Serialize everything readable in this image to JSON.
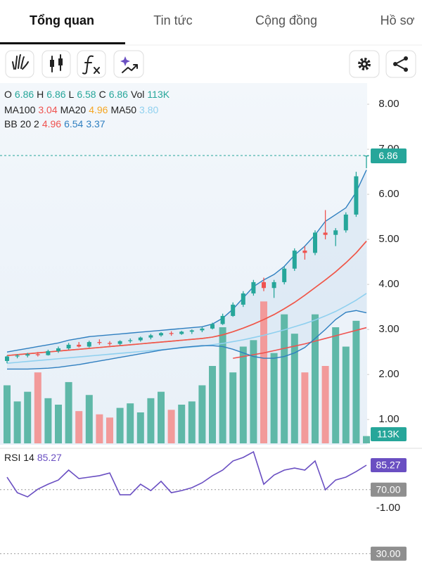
{
  "tabs": [
    "Tổng quan",
    "Tin tức",
    "Cộng đồng",
    "Hồ sơ"
  ],
  "active_tab": 0,
  "chart_data": {
    "type": "candlestick",
    "ylim": [
      0.44,
      8.47
    ],
    "yticks": [
      {
        "value": 1,
        "label": "1.00"
      },
      {
        "value": 2,
        "label": "2.00"
      },
      {
        "value": 3,
        "label": "3.00"
      },
      {
        "value": 4,
        "label": "4.00"
      },
      {
        "value": 5,
        "label": "5.00"
      },
      {
        "value": 6,
        "label": "6.00"
      },
      {
        "value": 7,
        "label": "7.00"
      },
      {
        "value": 8,
        "label": "8.00"
      }
    ],
    "ohlc_labels": [
      "O",
      "H",
      "L",
      "C",
      "Vol"
    ],
    "up_color": "#26a69a",
    "down_color": "#ef5350",
    "open": [
      2.3,
      2.4,
      2.42,
      2.45,
      2.43,
      2.52,
      2.58,
      2.66,
      2.62,
      2.72,
      2.7,
      2.68,
      2.74,
      2.76,
      2.82,
      2.87,
      2.92,
      2.9,
      2.95,
      2.98,
      3.02,
      3.12,
      3.3,
      3.55,
      3.8,
      4.05,
      3.92,
      4.05,
      4.35,
      4.75,
      4.7,
      5.15,
      5.1,
      5.2,
      5.55,
      6.86
    ],
    "high": [
      2.42,
      2.45,
      2.48,
      2.5,
      2.55,
      2.62,
      2.7,
      2.72,
      2.75,
      2.78,
      2.74,
      2.76,
      2.8,
      2.84,
      2.9,
      2.94,
      2.96,
      2.97,
      3.0,
      3.05,
      3.15,
      3.35,
      3.6,
      3.85,
      4.1,
      4.15,
      4.1,
      4.4,
      4.8,
      4.85,
      5.2,
      5.65,
      5.25,
      5.6,
      6.5,
      6.86
    ],
    "low": [
      2.25,
      2.36,
      2.38,
      2.4,
      2.42,
      2.48,
      2.55,
      2.6,
      2.6,
      2.66,
      2.64,
      2.65,
      2.7,
      2.73,
      2.78,
      2.84,
      2.86,
      2.88,
      2.9,
      2.94,
      3.0,
      3.1,
      3.28,
      3.5,
      3.75,
      3.85,
      3.7,
      4.0,
      4.3,
      4.55,
      4.65,
      5.0,
      4.85,
      5.15,
      5.5,
      6.58
    ],
    "close": [
      2.4,
      2.42,
      2.45,
      2.43,
      2.52,
      2.58,
      2.66,
      2.62,
      2.72,
      2.7,
      2.68,
      2.74,
      2.76,
      2.82,
      2.87,
      2.92,
      2.9,
      2.95,
      2.98,
      3.02,
      3.12,
      3.3,
      3.55,
      3.8,
      4.05,
      3.92,
      4.05,
      4.35,
      4.75,
      4.7,
      5.15,
      5.1,
      5.2,
      5.55,
      6.4,
      6.86
    ],
    "volume": [
      900000,
      650000,
      800000,
      1100000,
      700000,
      600000,
      950000,
      500000,
      750000,
      450000,
      400000,
      550000,
      620000,
      480000,
      700000,
      800000,
      520000,
      600000,
      650000,
      900000,
      1200000,
      1800000,
      1100000,
      1500000,
      1600000,
      2200000,
      1400000,
      2000000,
      1700000,
      1100000,
      2000000,
      1200000,
      1800000,
      1500000,
      1900000,
      113000
    ],
    "volume_lim": [
      0,
      2400000
    ],
    "volume_label": "113K",
    "indicators": [
      {
        "name": "MA100",
        "color": "#ef5350",
        "values": [
          null,
          null,
          null,
          null,
          null,
          null,
          null,
          null,
          null,
          null,
          null,
          null,
          null,
          null,
          null,
          null,
          null,
          null,
          null,
          null,
          null,
          null,
          2.36,
          2.4,
          2.44,
          2.48,
          2.53,
          2.58,
          2.63,
          2.68,
          2.74,
          2.8,
          2.86,
          2.92,
          2.98,
          3.04
        ]
      },
      {
        "name": "MA20",
        "color": "#f5a623",
        "values": [
          2.42,
          2.44,
          2.46,
          2.48,
          2.5,
          2.52,
          2.54,
          2.56,
          2.58,
          2.6,
          2.62,
          2.64,
          2.66,
          2.68,
          2.7,
          2.72,
          2.74,
          2.76,
          2.78,
          2.8,
          2.83,
          2.88,
          2.95,
          3.03,
          3.12,
          3.22,
          3.33,
          3.46,
          3.6,
          3.76,
          3.93,
          4.1,
          4.28,
          4.48,
          4.7,
          4.96
        ]
      },
      {
        "name": "MA50",
        "color": "#8fd0ef",
        "values": [
          2.25,
          2.27,
          2.29,
          2.31,
          2.33,
          2.35,
          2.37,
          2.39,
          2.41,
          2.43,
          2.45,
          2.47,
          2.49,
          2.51,
          2.53,
          2.55,
          2.57,
          2.59,
          2.61,
          2.63,
          2.66,
          2.69,
          2.73,
          2.77,
          2.82,
          2.87,
          2.93,
          2.99,
          3.06,
          3.13,
          3.21,
          3.3,
          3.4,
          3.52,
          3.65,
          3.8
        ],
        "value_labels": {
          "35": "3.80"
        }
      }
    ],
    "bb": {
      "name": "BB 20 2",
      "basis_color": "#ef5350",
      "color": "#2f7fc0",
      "upper": [
        2.5,
        2.54,
        2.58,
        2.62,
        2.66,
        2.7,
        2.76,
        2.8,
        2.84,
        2.86,
        2.88,
        2.9,
        2.92,
        2.94,
        2.96,
        2.98,
        3.0,
        3.02,
        3.04,
        3.06,
        3.12,
        3.25,
        3.45,
        3.7,
        3.95,
        4.1,
        4.22,
        4.4,
        4.65,
        4.85,
        5.1,
        5.4,
        5.55,
        5.7,
        6.05,
        6.54
      ],
      "lower": [
        2.12,
        2.12,
        2.12,
        2.13,
        2.14,
        2.16,
        2.19,
        2.22,
        2.26,
        2.3,
        2.34,
        2.38,
        2.42,
        2.46,
        2.5,
        2.54,
        2.57,
        2.6,
        2.62,
        2.64,
        2.64,
        2.62,
        2.56,
        2.48,
        2.4,
        2.36,
        2.36,
        2.4,
        2.48,
        2.6,
        2.8,
        3.0,
        3.22,
        3.38,
        3.42,
        3.37
      ]
    },
    "rsi": {
      "name": "RSI 14",
      "color": "#6a4fc2",
      "ylim": [
        24.2,
        94.5
      ],
      "yticks": [
        {
          "value": 70,
          "label": "70.00"
        },
        {
          "value": 30,
          "label": "30.00"
        }
      ],
      "axis_note": "-1.00",
      "values": [
        77.8,
        68.1,
        65.5,
        70.3,
        73.4,
        76.0,
        82.2,
        76.9,
        77.8,
        78.7,
        80.4,
        66.8,
        66.8,
        73.4,
        69.4,
        75.2,
        68.1,
        69.4,
        71.2,
        74.3,
        78.7,
        82.2,
        87.9,
        90.1,
        93.6,
        73.4,
        79.1,
        82.2,
        83.5,
        82.2,
        87.9,
        69.9,
        76.0,
        77.8,
        81.3,
        85.27
      ]
    }
  }
}
